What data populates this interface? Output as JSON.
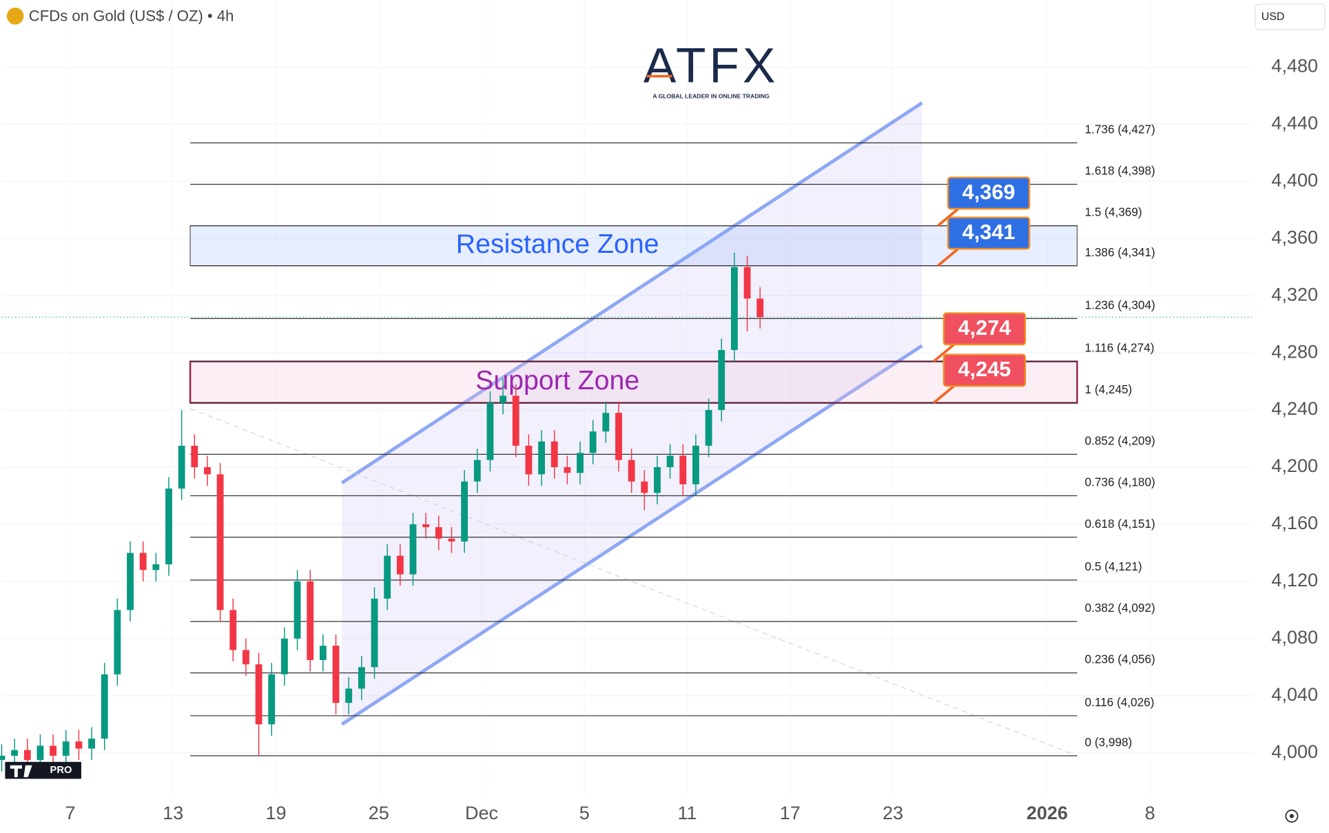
{
  "header": {
    "symbol": "CFDs on Gold (US$ / OZ) • 4h",
    "currency": "USD",
    "logo": "ATFX",
    "tagline": "A GLOBAL LEADER IN ONLINE TRADING",
    "badge": "PRO"
  },
  "chart_data": {
    "type": "candlestick",
    "up_color": "#089981",
    "down_color": "#f23645",
    "grid": true,
    "xlim": [
      0,
      292
    ],
    "ylim": [
      3970,
      4527
    ],
    "xticks": [
      {
        "value": 16,
        "label": "7"
      },
      {
        "value": 40,
        "label": "13"
      },
      {
        "value": 64,
        "label": "19"
      },
      {
        "value": 88,
        "label": "25"
      },
      {
        "value": 112,
        "label": "Dec"
      },
      {
        "value": 136,
        "label": "5"
      },
      {
        "value": 160,
        "label": "11"
      },
      {
        "value": 184,
        "label": "17"
      },
      {
        "value": 208,
        "label": "23"
      },
      {
        "value": 244,
        "label": "2026"
      },
      {
        "value": 268,
        "label": "8"
      }
    ],
    "yticks": [
      {
        "value": 4000,
        "label": "4,000"
      },
      {
        "value": 4040,
        "label": "4,040"
      },
      {
        "value": 4080,
        "label": "4,080"
      },
      {
        "value": 4120,
        "label": "4,120"
      },
      {
        "value": 4160,
        "label": "4,160"
      },
      {
        "value": 4200,
        "label": "4,200"
      },
      {
        "value": 4240,
        "label": "4,240"
      },
      {
        "value": 4280,
        "label": "4,280"
      },
      {
        "value": 4320,
        "label": "4,320"
      },
      {
        "value": 4360,
        "label": "4,360"
      },
      {
        "value": 4400,
        "label": "4,400"
      },
      {
        "value": 4440,
        "label": "4,440"
      },
      {
        "value": 4480,
        "label": "4,480"
      }
    ],
    "x": [
      0,
      3,
      6,
      9,
      12,
      15,
      18,
      21,
      24,
      27,
      30,
      33,
      36,
      39,
      42,
      45,
      48,
      51,
      54,
      57,
      60,
      63,
      66,
      69,
      72,
      75,
      78,
      81,
      84,
      87,
      90,
      93,
      96,
      99,
      102,
      105,
      108,
      111,
      114,
      117,
      120,
      123,
      126,
      129,
      132,
      135,
      138,
      141,
      144,
      147,
      150,
      153,
      156,
      159,
      162,
      165,
      168,
      171,
      174,
      177
    ],
    "open": [
      3995,
      3998,
      4002,
      3995,
      4005,
      3998,
      4008,
      4003,
      4010,
      4055,
      4100,
      4140,
      4128,
      4132,
      4185,
      4215,
      4200,
      4195,
      4100,
      4072,
      4062,
      4020,
      4055,
      4080,
      4120,
      4065,
      4075,
      4035,
      4045,
      4060,
      4108,
      4138,
      4125,
      4160,
      4158,
      4150,
      4148,
      4190,
      4205,
      4245,
      4250,
      4215,
      4195,
      4218,
      4200,
      4196,
      4210,
      4225,
      4238,
      4205,
      4190,
      4182,
      4200,
      4208,
      4188,
      4215,
      4240,
      4282,
      4340,
      4318
    ],
    "high": [
      4006,
      4010,
      4010,
      4013,
      4013,
      4016,
      4016,
      4018,
      4063,
      4108,
      4148,
      4148,
      4140,
      4193,
      4240,
      4223,
      4208,
      4203,
      4108,
      4080,
      4070,
      4063,
      4088,
      4128,
      4128,
      4083,
      4083,
      4053,
      4068,
      4116,
      4146,
      4146,
      4168,
      4168,
      4166,
      4158,
      4198,
      4213,
      4253,
      4262,
      4258,
      4223,
      4226,
      4226,
      4208,
      4218,
      4233,
      4246,
      4246,
      4213,
      4198,
      4208,
      4216,
      4216,
      4223,
      4248,
      4290,
      4350,
      4348,
      4326
    ],
    "low": [
      3987,
      3990,
      3987,
      3987,
      3990,
      3990,
      3995,
      3995,
      4002,
      4047,
      4092,
      4120,
      4120,
      4124,
      4177,
      4192,
      4187,
      4092,
      4064,
      4054,
      3998,
      4012,
      4047,
      4072,
      4057,
      4057,
      4027,
      4027,
      4037,
      4052,
      4100,
      4117,
      4117,
      4150,
      4142,
      4140,
      4140,
      4182,
      4197,
      4237,
      4207,
      4187,
      4187,
      4192,
      4188,
      4188,
      4202,
      4217,
      4197,
      4182,
      4170,
      4174,
      4192,
      4180,
      4180,
      4207,
      4232,
      4274,
      4295,
      4297
    ],
    "close": [
      3998,
      4002,
      3995,
      4005,
      3998,
      4008,
      4003,
      4010,
      4055,
      4100,
      4140,
      4128,
      4132,
      4185,
      4215,
      4200,
      4195,
      4100,
      4072,
      4062,
      4020,
      4055,
      4080,
      4120,
      4065,
      4075,
      4035,
      4045,
      4060,
      4108,
      4138,
      4125,
      4160,
      4158,
      4150,
      4148,
      4190,
      4205,
      4245,
      4250,
      4215,
      4195,
      4218,
      4200,
      4196,
      4210,
      4225,
      4238,
      4205,
      4190,
      4182,
      4200,
      4208,
      4188,
      4215,
      4240,
      4282,
      4340,
      4318,
      4305
    ],
    "fib_range": [
      44,
      251
    ],
    "fib_levels": [
      {
        "value": 4427,
        "label": "1.736 (4,427)"
      },
      {
        "value": 4398,
        "label": "1.618 (4,398)"
      },
      {
        "value": 4369,
        "label": "1.5 (4,369)"
      },
      {
        "value": 4341,
        "label": "1.386 (4,341)"
      },
      {
        "value": 4304,
        "label": "1.236 (4,304)"
      },
      {
        "value": 4274,
        "label": "1.116 (4,274)"
      },
      {
        "value": 4245,
        "label": "1 (4,245)"
      },
      {
        "value": 4209,
        "label": "0.852 (4,209)"
      },
      {
        "value": 4180,
        "label": "0.736 (4,180)"
      },
      {
        "value": 4151,
        "label": "0.618 (4,151)"
      },
      {
        "value": 4121,
        "label": "0.5 (4,121)"
      },
      {
        "value": 4092,
        "label": "0.382 (4,092)"
      },
      {
        "value": 4056,
        "label": "0.236 (4,056)"
      },
      {
        "value": 4026,
        "label": "0.116 (4,026)"
      },
      {
        "value": 3998,
        "label": "0 (3,998)"
      }
    ],
    "zones": [
      {
        "name": "Resistance Zone",
        "low": 4341,
        "high": 4369,
        "color": "#2962ff"
      },
      {
        "name": "Support Zone",
        "low": 4245,
        "high": 4274,
        "color": "#9c27b0"
      }
    ],
    "price_tags": [
      {
        "value": 4369,
        "label": "4,369",
        "color": "#2f6fe4"
      },
      {
        "value": 4341,
        "label": "4,341",
        "color": "#2f6fe4"
      },
      {
        "value": 4274,
        "label": "4,274",
        "color": "#f0505f"
      },
      {
        "value": 4245,
        "label": "4,245",
        "color": "#f0505f"
      }
    ],
    "channel": {
      "x": [
        79.4,
        214.8
      ],
      "upper": [
        4189,
        4455
      ],
      "lower": [
        4020,
        4285
      ],
      "color": "#8fa8f5"
    },
    "trendline": {
      "x": [
        44,
        251
      ],
      "y": [
        4241,
        3998
      ]
    }
  }
}
